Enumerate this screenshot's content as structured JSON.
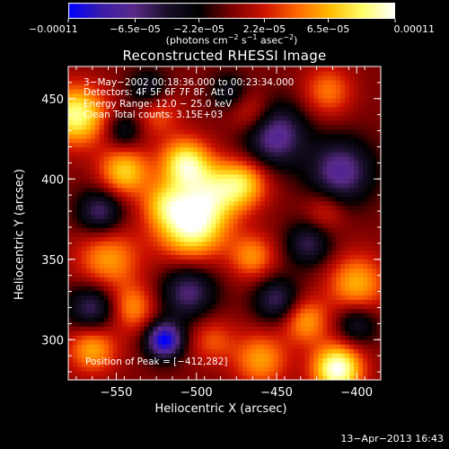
{
  "chart_data": {
    "type": "heatmap",
    "title": "Reconstructed RHESSI Image",
    "xlabel": "Heliocentric X (arcsec)",
    "ylabel": "Heliocentric Y (arcsec)",
    "xlim": [
      -580,
      -385
    ],
    "ylim": [
      275,
      470
    ],
    "x_ticks": [
      -550,
      -500,
      -450,
      -400
    ],
    "y_ticks": [
      300,
      350,
      400,
      450
    ],
    "x_tick_labels": [
      "−550",
      "−500",
      "−450",
      "−400"
    ],
    "y_tick_labels": [
      "300",
      "350",
      "400",
      "450"
    ],
    "colorbar": {
      "min": -0.00011,
      "max": 0.00011,
      "ticks": [
        -0.00011,
        -6.5e-05,
        -2.2e-05,
        2.2e-05,
        6.5e-05,
        0.00011
      ],
      "tick_labels": [
        "−0.00011",
        "−6.5e−05",
        "−2.2e−05",
        "2.2e−05",
        "6.5e−05",
        "0.00011"
      ],
      "units_main": "(photons cm",
      "units_exp1": "−2",
      "units_mid": " s",
      "units_exp2": "−1",
      "units_mid2": " asec",
      "units_exp3": "−2",
      "units_end": ")"
    },
    "colors": [
      "#0000ff",
      "#3a1ca8",
      "#5a2a8a",
      "#1a0f2a",
      "#000000",
      "#7a0000",
      "#cc1100",
      "#ff6600",
      "#ffbb00",
      "#ffff66",
      "#ffffff"
    ],
    "sources": [
      {
        "x": -503,
        "y": 372,
        "sigma": 15,
        "amp": 1.0
      },
      {
        "x": -507,
        "y": 410,
        "sigma": 11,
        "amp": 0.85
      },
      {
        "x": -488,
        "y": 393,
        "sigma": 13,
        "amp": 0.55
      },
      {
        "x": -470,
        "y": 398,
        "sigma": 11,
        "amp": 0.6
      },
      {
        "x": -545,
        "y": 405,
        "sigma": 11,
        "amp": 0.7
      },
      {
        "x": -575,
        "y": 440,
        "sigma": 13,
        "amp": 0.9
      },
      {
        "x": -555,
        "y": 350,
        "sigma": 14,
        "amp": 0.55
      },
      {
        "x": -465,
        "y": 352,
        "sigma": 10,
        "amp": 0.5
      },
      {
        "x": -412,
        "y": 282,
        "sigma": 11,
        "amp": 1.05
      },
      {
        "x": -400,
        "y": 335,
        "sigma": 13,
        "amp": 0.6
      },
      {
        "x": -432,
        "y": 312,
        "sigma": 10,
        "amp": 0.55
      },
      {
        "x": -565,
        "y": 295,
        "sigma": 11,
        "amp": 0.6
      },
      {
        "x": -540,
        "y": 320,
        "sigma": 10,
        "amp": 0.5
      },
      {
        "x": -460,
        "y": 288,
        "sigma": 12,
        "amp": 0.55
      },
      {
        "x": -490,
        "y": 300,
        "sigma": 10,
        "amp": 0.35
      },
      {
        "x": -520,
        "y": 385,
        "sigma": 10,
        "amp": 0.45
      },
      {
        "x": -418,
        "y": 455,
        "sigma": 11,
        "amp": 0.45
      },
      {
        "x": -525,
        "y": 442,
        "sigma": 10,
        "amp": 0.4
      },
      {
        "x": -465,
        "y": 440,
        "sigma": 10,
        "amp": 0.4
      },
      {
        "x": -420,
        "y": 380,
        "sigma": 9,
        "amp": 0.3
      },
      {
        "x": -520,
        "y": 300,
        "sigma": 8,
        "amp": -1.05
      },
      {
        "x": -452,
        "y": 428,
        "sigma": 14,
        "amp": -0.75
      },
      {
        "x": -410,
        "y": 405,
        "sigma": 14,
        "amp": -0.7
      },
      {
        "x": -560,
        "y": 380,
        "sigma": 10,
        "amp": -0.6
      },
      {
        "x": -565,
        "y": 320,
        "sigma": 11,
        "amp": -0.6
      },
      {
        "x": -505,
        "y": 330,
        "sigma": 12,
        "amp": -0.6
      },
      {
        "x": -450,
        "y": 325,
        "sigma": 10,
        "amp": -0.55
      },
      {
        "x": -400,
        "y": 310,
        "sigma": 9,
        "amp": -0.45
      },
      {
        "x": -530,
        "y": 455,
        "sigma": 9,
        "amp": -0.45
      },
      {
        "x": -430,
        "y": 360,
        "sigma": 10,
        "amp": -0.5
      },
      {
        "x": -545,
        "y": 430,
        "sigma": 8,
        "amp": -0.4
      },
      {
        "x": -480,
        "y": 455,
        "sigma": 8,
        "amp": -0.35
      }
    ]
  },
  "info": {
    "time_range": "3−May−2002 00:18:36.000 to 00:23:34.000",
    "detectors": "Detectors: 4F 5F 6F 7F 8F, Att 0",
    "energy": "Energy Range: 12.0 − 25.0 keV",
    "clean": "Clean    Total counts: 3.15E+03",
    "peak": "Position of Peak = [−412,282]"
  },
  "footer": {
    "timestamp": "13−Apr−2013 16:43"
  }
}
